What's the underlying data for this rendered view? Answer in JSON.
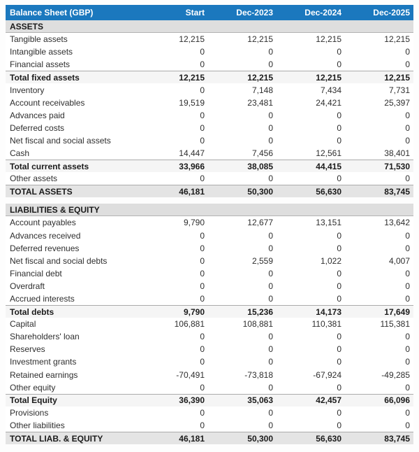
{
  "table": {
    "title": "Balance Sheet (GBP)",
    "columns": [
      "Start",
      "Dec-2023",
      "Dec-2024",
      "Dec-2025"
    ],
    "rows": [
      {
        "type": "section",
        "label": "ASSETS"
      },
      {
        "type": "data",
        "label": "Tangible assets",
        "values": [
          "12,215",
          "12,215",
          "12,215",
          "12,215"
        ]
      },
      {
        "type": "data",
        "label": "Intangible assets",
        "values": [
          "0",
          "0",
          "0",
          "0"
        ]
      },
      {
        "type": "data",
        "label": "Financial assets",
        "values": [
          "0",
          "0",
          "0",
          "0"
        ]
      },
      {
        "type": "subtotal",
        "label": "Total fixed assets",
        "values": [
          "12,215",
          "12,215",
          "12,215",
          "12,215"
        ]
      },
      {
        "type": "data",
        "label": "Inventory",
        "values": [
          "0",
          "7,148",
          "7,434",
          "7,731"
        ]
      },
      {
        "type": "data",
        "label": "Account receivables",
        "values": [
          "19,519",
          "23,481",
          "24,421",
          "25,397"
        ]
      },
      {
        "type": "data",
        "label": "Advances paid",
        "values": [
          "0",
          "0",
          "0",
          "0"
        ]
      },
      {
        "type": "data",
        "label": "Deferred costs",
        "values": [
          "0",
          "0",
          "0",
          "0"
        ]
      },
      {
        "type": "data",
        "label": "Net fiscal and social assets",
        "values": [
          "0",
          "0",
          "0",
          "0"
        ]
      },
      {
        "type": "data",
        "label": "Cash",
        "values": [
          "14,447",
          "7,456",
          "12,561",
          "38,401"
        ]
      },
      {
        "type": "subtotal",
        "label": "Total current assets",
        "values": [
          "33,966",
          "38,085",
          "44,415",
          "71,530"
        ]
      },
      {
        "type": "data",
        "label": "Other assets",
        "values": [
          "0",
          "0",
          "0",
          "0"
        ]
      },
      {
        "type": "grandtotal",
        "label": "TOTAL ASSETS",
        "values": [
          "46,181",
          "50,300",
          "56,630",
          "83,745"
        ]
      },
      {
        "type": "spacer",
        "label": ""
      },
      {
        "type": "section",
        "label": "LIABILITIES & EQUITY"
      },
      {
        "type": "data",
        "label": "Account payables",
        "values": [
          "9,790",
          "12,677",
          "13,151",
          "13,642"
        ]
      },
      {
        "type": "data",
        "label": "Advances received",
        "values": [
          "0",
          "0",
          "0",
          "0"
        ]
      },
      {
        "type": "data",
        "label": "Deferred revenues",
        "values": [
          "0",
          "0",
          "0",
          "0"
        ]
      },
      {
        "type": "data",
        "label": "Net fiscal and social debts",
        "values": [
          "0",
          "2,559",
          "1,022",
          "4,007"
        ]
      },
      {
        "type": "data",
        "label": "Financial debt",
        "values": [
          "0",
          "0",
          "0",
          "0"
        ]
      },
      {
        "type": "data",
        "label": "Overdraft",
        "values": [
          "0",
          "0",
          "0",
          "0"
        ]
      },
      {
        "type": "data",
        "label": "Accrued interests",
        "values": [
          "0",
          "0",
          "0",
          "0"
        ]
      },
      {
        "type": "subtotal",
        "label": "Total debts",
        "values": [
          "9,790",
          "15,236",
          "14,173",
          "17,649"
        ]
      },
      {
        "type": "data",
        "label": "Capital",
        "values": [
          "106,881",
          "108,881",
          "110,381",
          "115,381"
        ]
      },
      {
        "type": "data",
        "label": "Shareholders' loan",
        "values": [
          "0",
          "0",
          "0",
          "0"
        ]
      },
      {
        "type": "data",
        "label": "Reserves",
        "values": [
          "0",
          "0",
          "0",
          "0"
        ]
      },
      {
        "type": "data",
        "label": "Investment grants",
        "values": [
          "0",
          "0",
          "0",
          "0"
        ]
      },
      {
        "type": "data",
        "label": "Retained earnings",
        "values": [
          "-70,491",
          "-73,818",
          "-67,924",
          "-49,285"
        ]
      },
      {
        "type": "data",
        "label": "Other equity",
        "values": [
          "0",
          "0",
          "0",
          "0"
        ]
      },
      {
        "type": "subtotal",
        "label": "Total Equity",
        "values": [
          "36,390",
          "35,063",
          "42,457",
          "66,096"
        ]
      },
      {
        "type": "data",
        "label": "Provisions",
        "values": [
          "0",
          "0",
          "0",
          "0"
        ]
      },
      {
        "type": "data",
        "label": "Other liabilities",
        "values": [
          "0",
          "0",
          "0",
          "0"
        ]
      },
      {
        "type": "grandtotal",
        "label": "TOTAL LIAB. & EQUITY",
        "values": [
          "46,181",
          "50,300",
          "56,630",
          "83,745"
        ]
      }
    ]
  },
  "colors": {
    "header_bg": "#1b78be",
    "header_text": "#ffffff",
    "section_bg": "#dedede",
    "subtotal_bg": "#f5f5f5",
    "grandtotal_bg": "#e4e4e4",
    "border": "#ababab"
  },
  "chart_data": {
    "type": "table",
    "title": "Balance Sheet (GBP)",
    "columns": [
      "Start",
      "Dec-2023",
      "Dec-2024",
      "Dec-2025"
    ],
    "sections": [
      {
        "name": "ASSETS",
        "rows": [
          {
            "label": "Tangible assets",
            "values": [
              12215,
              12215,
              12215,
              12215
            ]
          },
          {
            "label": "Intangible assets",
            "values": [
              0,
              0,
              0,
              0
            ]
          },
          {
            "label": "Financial assets",
            "values": [
              0,
              0,
              0,
              0
            ]
          },
          {
            "label": "Total fixed assets",
            "values": [
              12215,
              12215,
              12215,
              12215
            ],
            "emphasis": "subtotal"
          },
          {
            "label": "Inventory",
            "values": [
              0,
              7148,
              7434,
              7731
            ]
          },
          {
            "label": "Account receivables",
            "values": [
              19519,
              23481,
              24421,
              25397
            ]
          },
          {
            "label": "Advances paid",
            "values": [
              0,
              0,
              0,
              0
            ]
          },
          {
            "label": "Deferred costs",
            "values": [
              0,
              0,
              0,
              0
            ]
          },
          {
            "label": "Net fiscal and social assets",
            "values": [
              0,
              0,
              0,
              0
            ]
          },
          {
            "label": "Cash",
            "values": [
              14447,
              7456,
              12561,
              38401
            ]
          },
          {
            "label": "Total current assets",
            "values": [
              33966,
              38085,
              44415,
              71530
            ],
            "emphasis": "subtotal"
          },
          {
            "label": "Other assets",
            "values": [
              0,
              0,
              0,
              0
            ]
          },
          {
            "label": "TOTAL ASSETS",
            "values": [
              46181,
              50300,
              56630,
              83745
            ],
            "emphasis": "grandtotal"
          }
        ]
      },
      {
        "name": "LIABILITIES & EQUITY",
        "rows": [
          {
            "label": "Account payables",
            "values": [
              9790,
              12677,
              13151,
              13642
            ]
          },
          {
            "label": "Advances received",
            "values": [
              0,
              0,
              0,
              0
            ]
          },
          {
            "label": "Deferred revenues",
            "values": [
              0,
              0,
              0,
              0
            ]
          },
          {
            "label": "Net fiscal and social debts",
            "values": [
              0,
              2559,
              1022,
              4007
            ]
          },
          {
            "label": "Financial debt",
            "values": [
              0,
              0,
              0,
              0
            ]
          },
          {
            "label": "Overdraft",
            "values": [
              0,
              0,
              0,
              0
            ]
          },
          {
            "label": "Accrued interests",
            "values": [
              0,
              0,
              0,
              0
            ]
          },
          {
            "label": "Total debts",
            "values": [
              9790,
              15236,
              14173,
              17649
            ],
            "emphasis": "subtotal"
          },
          {
            "label": "Capital",
            "values": [
              106881,
              108881,
              110381,
              115381
            ]
          },
          {
            "label": "Shareholders' loan",
            "values": [
              0,
              0,
              0,
              0
            ]
          },
          {
            "label": "Reserves",
            "values": [
              0,
              0,
              0,
              0
            ]
          },
          {
            "label": "Investment grants",
            "values": [
              0,
              0,
              0,
              0
            ]
          },
          {
            "label": "Retained earnings",
            "values": [
              -70491,
              -73818,
              -67924,
              -49285
            ]
          },
          {
            "label": "Other equity",
            "values": [
              0,
              0,
              0,
              0
            ]
          },
          {
            "label": "Total Equity",
            "values": [
              36390,
              35063,
              42457,
              66096
            ],
            "emphasis": "subtotal"
          },
          {
            "label": "Provisions",
            "values": [
              0,
              0,
              0,
              0
            ]
          },
          {
            "label": "Other liabilities",
            "values": [
              0,
              0,
              0,
              0
            ]
          },
          {
            "label": "TOTAL LIAB. & EQUITY",
            "values": [
              46181,
              50300,
              56630,
              83745
            ],
            "emphasis": "grandtotal"
          }
        ]
      }
    ]
  }
}
